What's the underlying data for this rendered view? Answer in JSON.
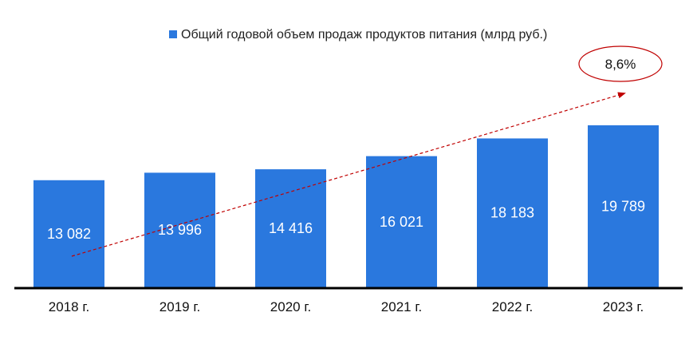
{
  "chart_data": {
    "type": "bar",
    "categories": [
      "2018 г.",
      "2019 г.",
      "2020 г.",
      "2021 г.",
      "2022 г.",
      "2023 г."
    ],
    "series": [
      {
        "name": "Общий годовой объем продаж продуктов питания (млрд руб.)",
        "values": [
          13082,
          13996,
          14416,
          16021,
          18183,
          19789
        ],
        "labels": [
          "13 082",
          "13 996",
          "14 416",
          "16 021",
          "18 183",
          "19 789"
        ],
        "color": "#2a78de"
      }
    ],
    "title": "",
    "xlabel": "",
    "ylabel": "",
    "ylim": [
      0,
      30000
    ],
    "grid": false,
    "legend": "top-center",
    "annotations": {
      "growth_label": "8,6%",
      "trend_arrow": "dashed-red-arrow-rising",
      "annotation_color": "#c00000"
    }
  }
}
